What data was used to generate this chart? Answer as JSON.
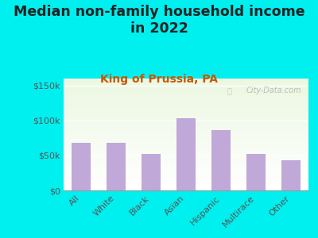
{
  "title": "Median non-family household income\nin 2022",
  "subtitle": "King of Prussia, PA",
  "categories": [
    "All",
    "White",
    "Black",
    "Asian",
    "Hispanic",
    "Multirace",
    "Other"
  ],
  "values": [
    68000,
    68000,
    52000,
    103000,
    86000,
    52000,
    43000
  ],
  "bar_color": "#c0a8d8",
  "background_outer": "#00efef",
  "ylim": [
    0,
    160000
  ],
  "yticks": [
    0,
    50000,
    100000,
    150000
  ],
  "ytick_labels": [
    "$0",
    "$50k",
    "$100k",
    "$150k"
  ],
  "watermark": "City-Data.com",
  "title_fontsize": 12.5,
  "title_color": "#222222",
  "subtitle_fontsize": 10,
  "subtitle_color": "#cc5500",
  "tick_label_color": "#555555",
  "tick_label_fontsize": 8,
  "xtick_fontsize": 8
}
